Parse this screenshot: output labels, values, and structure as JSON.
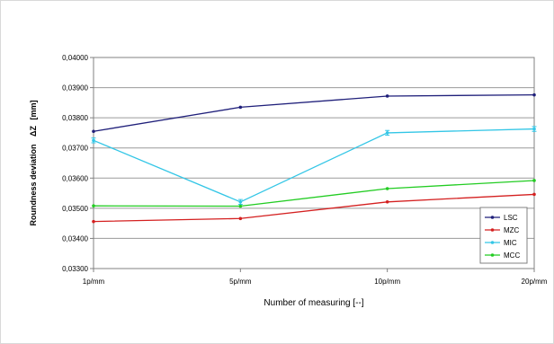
{
  "chart_data": {
    "type": "line",
    "categories": [
      "1p/mm",
      "5p/mm",
      "10p/mm",
      "20p/mm"
    ],
    "xlabel": "Number of measuring  [--]",
    "ylabel": "Roundness deviation",
    "ylabel_symbol": "ΔZ",
    "ylabel_unit": "[mm]",
    "ylim": [
      0.033,
      0.04
    ],
    "yticks": [
      0.033,
      0.034,
      0.035,
      0.036,
      0.037,
      0.038,
      0.039,
      0.04
    ],
    "ytick_labels": [
      "0,03300",
      "0,03400",
      "0,03500",
      "0,03600",
      "0,03700",
      "0,03800",
      "0,03900",
      "0,04000"
    ],
    "grid": "horizontal",
    "legend_position": "bottom-right",
    "series": [
      {
        "name": "LSC",
        "color": "#1f1f7a",
        "values": [
          0.03755,
          0.03835,
          0.03872,
          0.03876
        ],
        "err": [
          5e-06,
          5e-06,
          5e-06,
          5e-06
        ]
      },
      {
        "name": "MZC",
        "color": "#d42020",
        "values": [
          0.03456,
          0.03466,
          0.03521,
          0.03546
        ],
        "err": [
          5e-06,
          5e-06,
          5e-06,
          5e-06
        ]
      },
      {
        "name": "MIC",
        "color": "#33c6e6",
        "values": [
          0.03725,
          0.03521,
          0.0375,
          0.03763
        ],
        "err": [
          8e-05,
          8e-05,
          8e-05,
          8e-05
        ]
      },
      {
        "name": "MCC",
        "color": "#22cc22",
        "values": [
          0.03508,
          0.03507,
          0.03565,
          0.03592
        ],
        "err": [
          2e-05,
          2e-05,
          2e-05,
          2e-05
        ]
      }
    ]
  }
}
